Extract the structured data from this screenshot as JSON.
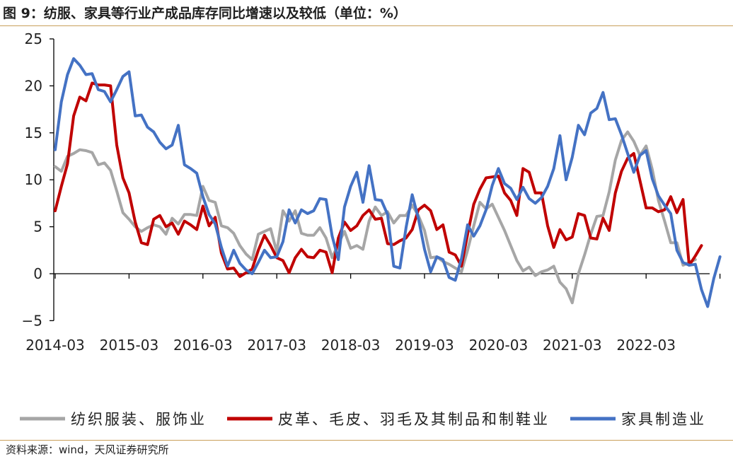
{
  "title": "图 9：纺服、家具等行业产成品库存同比增速以及较低（单位：%）",
  "source": "资料来源：wind，天风证券研究所",
  "chart_data": {
    "type": "line",
    "x_tick_labels": [
      "2014-03",
      "2015-03",
      "2016-03",
      "2017-03",
      "2018-03",
      "2019-03",
      "2020-03",
      "2021-03",
      "2022-03"
    ],
    "y_ticks": [
      -5,
      0,
      5,
      10,
      15,
      20,
      25
    ],
    "ylim": [
      -5,
      25
    ],
    "grid": false,
    "legend_position": "bottom",
    "series": [
      {
        "name": "纺织服装、服饰业",
        "color": "#a6a6a6",
        "values": [
          11.4,
          10.9,
          12.5,
          12.8,
          13.2,
          13.1,
          12.9,
          11.6,
          11.8,
          11.0,
          8.8,
          6.5,
          5.8,
          5.0,
          4.5,
          4.9,
          5.2,
          5.0,
          4.2,
          5.9,
          5.3,
          6.3,
          6.3,
          6.2,
          9.3,
          7.8,
          7.6,
          5.1,
          4.9,
          4.3,
          3.0,
          2.1,
          1.5,
          4.2,
          4.5,
          4.8,
          2.3,
          6.7,
          5.6,
          6.7,
          4.3,
          4.1,
          4.1,
          4.9,
          3.8,
          1.7,
          3.2,
          4.5,
          2.7,
          3.0,
          2.6,
          5.6,
          7.1,
          6.2,
          6.6,
          5.4,
          6.2,
          6.2,
          7.3,
          6.2,
          4.6,
          1.7,
          1.8,
          1.3,
          1.0,
          0.6,
          0.2,
          2.5,
          5.1,
          7.6,
          6.9,
          7.4,
          6.0,
          4.6,
          3.0,
          1.4,
          0.3,
          0.7,
          -0.2,
          0.2,
          0.4,
          0.8,
          -0.9,
          -1.6,
          -3.1,
          0.0,
          2.0,
          4.2,
          6.1,
          6.2,
          8.7,
          12.1,
          14.2,
          15.1,
          14.1,
          12.6,
          13.6,
          11.1,
          7.8,
          5.6,
          3.3,
          3.3,
          0.9,
          1.2,
          1.5
        ]
      },
      {
        "name": "皮革、毛皮、羽毛及其制品和制鞋业",
        "color": "#c00000",
        "values": [
          6.7,
          9.3,
          11.7,
          16.8,
          18.8,
          18.4,
          20.3,
          20.1,
          20.1,
          20.0,
          13.7,
          10.2,
          8.6,
          5.5,
          3.3,
          3.1,
          5.8,
          6.2,
          5.0,
          5.4,
          4.2,
          5.6,
          5.2,
          4.7,
          7.2,
          5.1,
          6.0,
          2.2,
          0.5,
          0.6,
          -0.3,
          0.1,
          0.5,
          2.5,
          4.1,
          3.0,
          1.7,
          1.4,
          0.1,
          1.7,
          2.6,
          1.8,
          1.7,
          2.5,
          2.3,
          0.1,
          3.8,
          5.5,
          4.6,
          5.1,
          6.2,
          6.8,
          5.8,
          5.9,
          3.2,
          3.1,
          3.5,
          3.8,
          4.7,
          6.8,
          7.3,
          6.7,
          4.7,
          5.2,
          2.3,
          2.0,
          0.8,
          4.2,
          7.4,
          9.0,
          10.2,
          10.3,
          10.4,
          8.6,
          7.8,
          6.2,
          11.2,
          10.8,
          8.6,
          8.6,
          5.1,
          2.8,
          4.7,
          3.6,
          3.9,
          6.4,
          6.2,
          3.8,
          3.7,
          5.9,
          4.6,
          8.6,
          10.9,
          12.3,
          12.8,
          9.9,
          7.0,
          7.0,
          6.6,
          6.8,
          8.2,
          6.5,
          7.9,
          0.9,
          1.9,
          3.0
        ]
      },
      {
        "name": "家具制造业",
        "color": "#4472c4",
        "values": [
          13.2,
          18.3,
          21.2,
          22.9,
          22.2,
          21.2,
          21.3,
          19.6,
          19.4,
          18.3,
          19.6,
          21.0,
          21.5,
          16.8,
          16.9,
          15.6,
          15.1,
          14.0,
          13.3,
          13.7,
          15.8,
          11.6,
          11.2,
          10.7,
          8.2,
          6.3,
          5.3,
          2.8,
          0.8,
          2.5,
          1.1,
          0.4,
          0.0,
          1.2,
          2.5,
          1.7,
          1.8,
          3.4,
          6.8,
          5.4,
          6.8,
          6.4,
          6.7,
          8.0,
          7.9,
          4.0,
          1.5,
          7.1,
          9.3,
          10.8,
          7.6,
          11.5,
          7.9,
          7.8,
          6.3,
          0.8,
          0.6,
          4.9,
          8.4,
          5.9,
          2.6,
          0.2,
          1.8,
          1.5,
          -0.4,
          -0.7,
          1.6,
          5.2,
          4.0,
          5.1,
          6.8,
          9.4,
          11.2,
          9.6,
          9.1,
          7.9,
          9.2,
          8.0,
          7.5,
          8.1,
          9.3,
          11.2,
          14.7,
          10.0,
          12.4,
          15.8,
          14.8,
          17.1,
          17.6,
          19.3,
          16.4,
          16.5,
          14.8,
          12.8,
          10.8,
          12.6,
          13.1,
          10.1,
          8.3,
          7.3,
          6.4,
          2.5,
          1.2,
          0.9,
          1.0,
          -1.7,
          -3.5,
          -0.5,
          1.8
        ]
      }
    ]
  }
}
